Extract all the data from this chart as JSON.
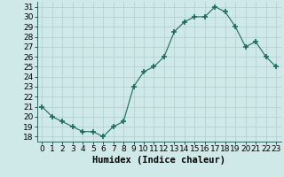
{
  "x": [
    0,
    1,
    2,
    3,
    4,
    5,
    6,
    7,
    8,
    9,
    10,
    11,
    12,
    13,
    14,
    15,
    16,
    17,
    18,
    19,
    20,
    21,
    22,
    23
  ],
  "y": [
    21,
    20,
    19.5,
    19,
    18.5,
    18.5,
    18,
    19,
    19.5,
    23,
    24.5,
    25,
    26,
    28.5,
    29.5,
    30,
    30,
    31,
    30.5,
    29,
    27,
    27.5,
    26,
    25
  ],
  "line_color": "#1a6b5a",
  "marker": "+",
  "marker_size": 4,
  "bg_color": "#cfe8e8",
  "grid_color": "#b0cccc",
  "xlabel": "Humidex (Indice chaleur)",
  "xlim": [
    -0.5,
    23.5
  ],
  "ylim": [
    17.5,
    31.5
  ],
  "yticks": [
    18,
    19,
    20,
    21,
    22,
    23,
    24,
    25,
    26,
    27,
    28,
    29,
    30,
    31
  ],
  "xticks": [
    0,
    1,
    2,
    3,
    4,
    5,
    6,
    7,
    8,
    9,
    10,
    11,
    12,
    13,
    14,
    15,
    16,
    17,
    18,
    19,
    20,
    21,
    22,
    23
  ],
  "xlabel_fontsize": 7.5,
  "tick_fontsize": 6.5
}
